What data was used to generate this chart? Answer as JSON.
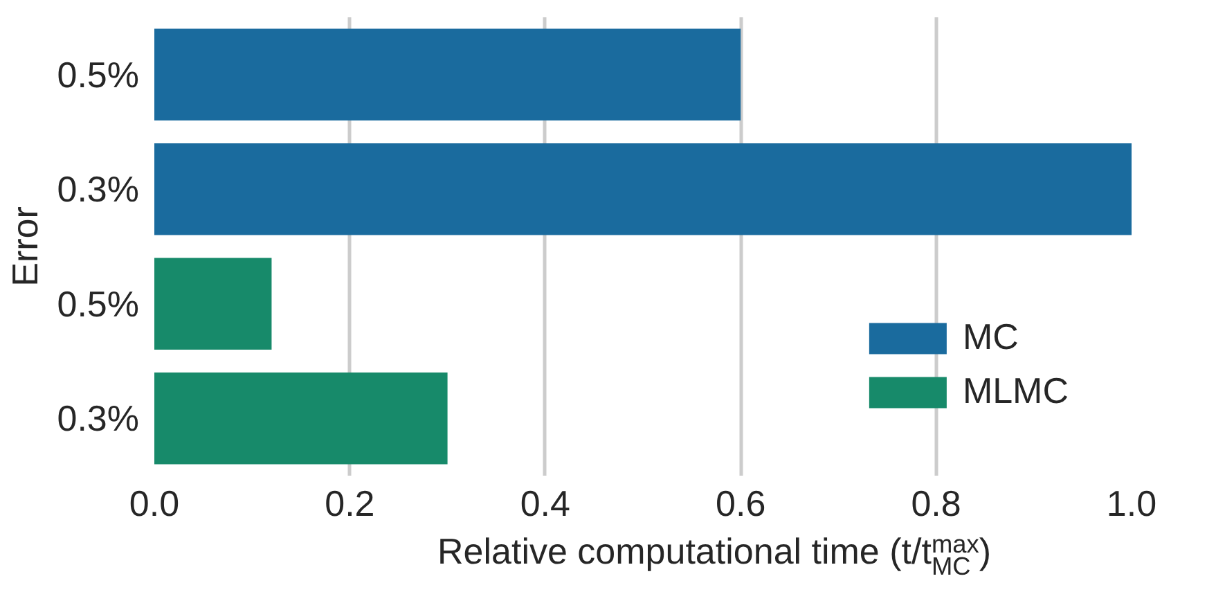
{
  "chart_data": {
    "type": "bar",
    "orientation": "horizontal",
    "categories": [
      "0.5%",
      "0.3%",
      "0.5%",
      "0.3%"
    ],
    "series": [
      {
        "name": "MC",
        "color": "#1a6b9e",
        "values": [
          0.6,
          1.0,
          null,
          null
        ]
      },
      {
        "name": "MLMC",
        "color": "#178a6a",
        "values": [
          null,
          null,
          0.12,
          0.3
        ]
      }
    ],
    "xlabel": "Relative computational time (t/t$^{max}$$_{MC}$)",
    "ylabel": "Error",
    "xlim": [
      0,
      1.0
    ],
    "xticks": [
      {
        "value": 0,
        "label": "0.0"
      },
      0.2,
      0.4,
      0.6,
      0.8,
      {
        "value": 1,
        "label": "1.0"
      }
    ],
    "grid": "x",
    "legend": "bottom right"
  }
}
